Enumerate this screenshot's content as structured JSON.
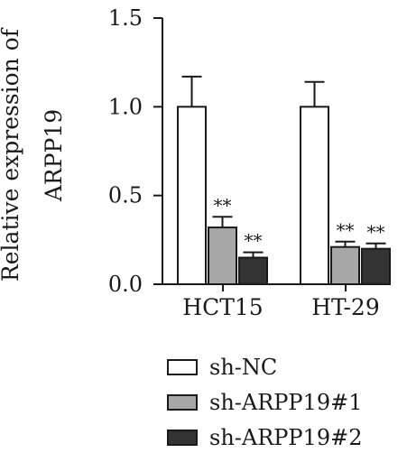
{
  "chart_data": {
    "type": "bar",
    "title": "",
    "ylabel": [
      "Relative expression of",
      "ARPP19"
    ],
    "xlabel": "",
    "ylim": [
      0,
      1.5
    ],
    "yticks": [
      "0.0",
      "0.5",
      "1.0",
      "1.5"
    ],
    "ytick_values": [
      0,
      0.5,
      1.0,
      1.5
    ],
    "categories": [
      "HCT15",
      "HT-29"
    ],
    "series": [
      {
        "name": "sh-NC",
        "values": [
          1.0,
          1.0
        ],
        "errors": [
          0.17,
          0.14
        ],
        "significance": [
          "",
          ""
        ],
        "color": "#ffffff"
      },
      {
        "name": "sh-ARPP19#1",
        "values": [
          0.32,
          0.21
        ],
        "errors": [
          0.06,
          0.03
        ],
        "significance": [
          "**",
          "**"
        ],
        "color": "#a7a7a7"
      },
      {
        "name": "sh-ARPP19#2",
        "values": [
          0.15,
          0.2
        ],
        "errors": [
          0.03,
          0.03
        ],
        "significance": [
          "**",
          "**"
        ],
        "color": "#333333"
      }
    ],
    "grid": false,
    "legend_position": "bottom",
    "edge_color": "#1a1a1a"
  }
}
